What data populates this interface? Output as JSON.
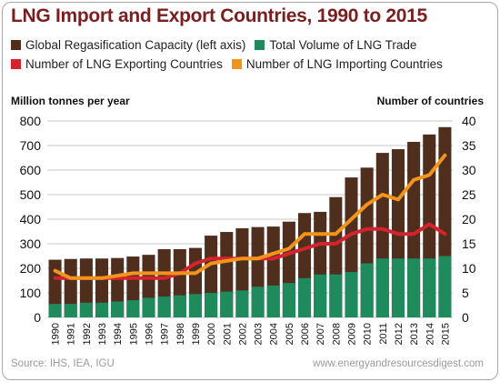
{
  "title": "LNG Import and Export Countries, 1990 to 2015",
  "colors": {
    "title": "#7a1f1f",
    "regas": "#4f2e1e",
    "trade": "#1f8a5c",
    "exporting": "#d3242e",
    "importing": "#f2941b"
  },
  "legend": {
    "regas": "Global Regasification Capacity (left axis)",
    "trade": "Total Volume of LNG Trade",
    "exporting": "Number of LNG Exporting Countries",
    "importing": "Number of LNG Importing Countries"
  },
  "footer": {
    "source": "Source: IHS, IEA, IGU",
    "site": "www.energyandresourcesdigest.com"
  },
  "chart_data": {
    "type": "bar",
    "title": "LNG Import and Export Countries, 1990 to 2015",
    "ylabel": "Million tonnes per year",
    "y2label": "Number of countries",
    "ylim": [
      0,
      800
    ],
    "y2lim": [
      0,
      40
    ],
    "yticks": [
      0,
      100,
      200,
      300,
      400,
      500,
      600,
      700,
      800
    ],
    "y2ticks": [
      0,
      5,
      10,
      15,
      20,
      25,
      30,
      35,
      40
    ],
    "grid": true,
    "categories": [
      "1990",
      "1991",
      "1992",
      "1993",
      "1994",
      "1995",
      "1996",
      "1997",
      "1998",
      "1999",
      "2000",
      "2001",
      "2002",
      "2003",
      "2004",
      "2005",
      "2006",
      "2007",
      "2008",
      "2009",
      "2010",
      "2011",
      "2012",
      "2013",
      "2014",
      "2015"
    ],
    "series": [
      {
        "name": "Global Regasification Capacity (left axis)",
        "type": "bar",
        "axis": "left",
        "values": [
          235,
          238,
          240,
          240,
          242,
          248,
          255,
          278,
          278,
          283,
          333,
          348,
          363,
          368,
          370,
          390,
          425,
          430,
          490,
          570,
          610,
          670,
          685,
          715,
          745,
          775
        ]
      },
      {
        "name": "Total Volume of LNG Trade",
        "type": "bar",
        "axis": "left",
        "values": [
          55,
          55,
          60,
          60,
          65,
          70,
          80,
          85,
          90,
          95,
          100,
          105,
          110,
          125,
          130,
          140,
          160,
          175,
          175,
          185,
          220,
          240,
          240,
          240,
          240,
          250
        ]
      },
      {
        "name": "Number of LNG Exporting Countries",
        "type": "line",
        "axis": "right",
        "values": [
          8,
          8,
          8,
          8,
          8,
          8,
          8,
          8,
          9,
          11,
          12,
          12,
          12,
          12,
          12,
          13,
          14,
          15,
          15,
          17,
          18,
          18,
          17,
          17,
          19,
          17
        ]
      },
      {
        "name": "Number of LNG Importing Countries",
        "type": "line",
        "axis": "right",
        "values": [
          9.5,
          8,
          8,
          8,
          8.5,
          9,
          9,
          9,
          9,
          9,
          11,
          11.5,
          12,
          12,
          13,
          14,
          17,
          17,
          17,
          20,
          23,
          25,
          24,
          28,
          29,
          33
        ]
      }
    ]
  }
}
